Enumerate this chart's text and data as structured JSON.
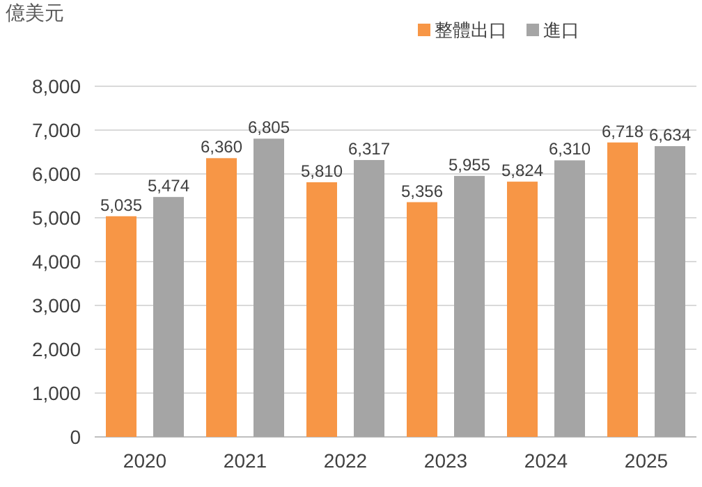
{
  "chart_data": {
    "type": "bar",
    "ylabel": "億美元",
    "categories": [
      "2020",
      "2021",
      "2022",
      "2023",
      "2024",
      "2025"
    ],
    "series": [
      {
        "name": "整體出口",
        "color": "#f79646",
        "values": [
          5035,
          6360,
          5810,
          5356,
          5824,
          6718
        ],
        "value_labels": [
          "5,035",
          "6,360",
          "5,810",
          "5,356",
          "5,824",
          "6,718"
        ]
      },
      {
        "name": "進口",
        "color": "#a5a5a5",
        "values": [
          5474,
          6805,
          6317,
          5955,
          6310,
          6634
        ],
        "value_labels": [
          "5,474",
          "6,805",
          "6,317",
          "5,955",
          "6,310",
          "6,634"
        ]
      }
    ],
    "ylim": [
      0,
      8000
    ],
    "yticks": [
      {
        "value": 0,
        "label": "0"
      },
      {
        "value": 1000,
        "label": "1,000"
      },
      {
        "value": 2000,
        "label": "2,000"
      },
      {
        "value": 3000,
        "label": "3,000"
      },
      {
        "value": 4000,
        "label": "4,000"
      },
      {
        "value": 5000,
        "label": "5,000"
      },
      {
        "value": 6000,
        "label": "6,000"
      },
      {
        "value": 7000,
        "label": "7,000"
      },
      {
        "value": 8000,
        "label": "8,000"
      }
    ],
    "grid": "y",
    "legend": "top right"
  }
}
